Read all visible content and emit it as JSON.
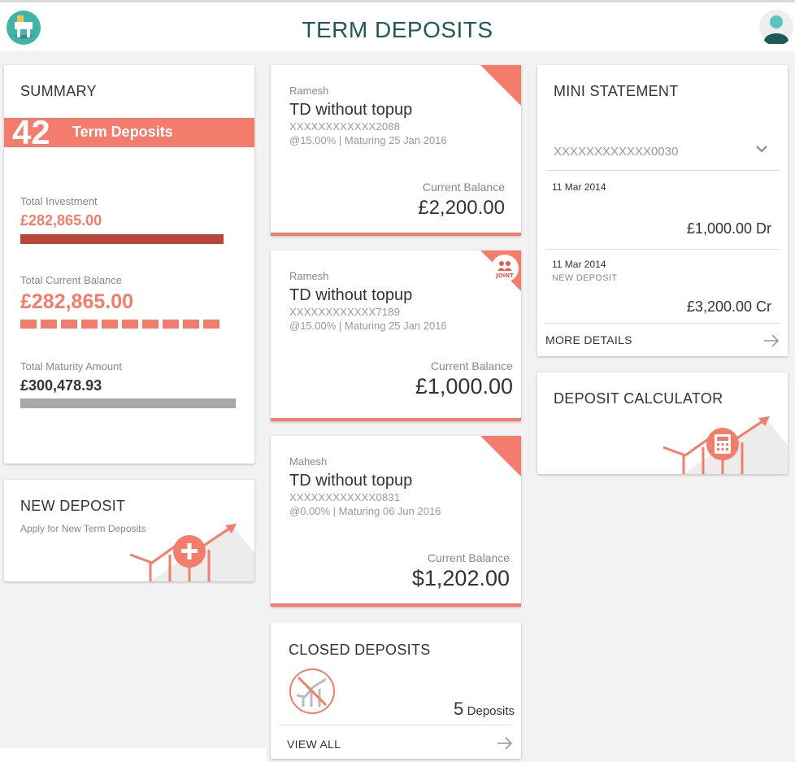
{
  "header": {
    "title": "TERM DEPOSITS"
  },
  "summary": {
    "title": "SUMMARY",
    "count": "42",
    "count_label": "Term Deposits",
    "total_investment_label": "Total Investment",
    "total_investment": "£282,865.00",
    "total_current_balance_label": "Total Current Balance",
    "total_current_balance": "£282,865.00",
    "total_maturity_label": "Total Maturity Amount",
    "total_maturity": "£300,478.93"
  },
  "new_deposit": {
    "title": "NEW DEPOSIT",
    "subtitle": "Apply for New Term Deposits"
  },
  "deposits": [
    {
      "owner": "Ramesh",
      "name": "TD without topup",
      "account": "XXXXXXXXXXXX2088",
      "rate": "@15.00% | Maturing 25 Jan 2016",
      "balance_label": "Current Balance",
      "balance": "£2,200.00",
      "badge": ""
    },
    {
      "owner": "Ramesh",
      "name": "TD without topup",
      "account": "XXXXXXXXXXXX7189",
      "rate": "@15.00% | Maturing 25 Jan 2016",
      "balance_label": "Current Balance",
      "balance": "£1,000.00",
      "badge": "JOINT"
    },
    {
      "owner": "Mahesh",
      "name": "TD without topup",
      "account": "XXXXXXXXXXXX0831",
      "rate": "@0.00% | Maturing 06 Jun 2016",
      "balance_label": "Current Balance",
      "balance": "$1,202.00",
      "badge": ""
    }
  ],
  "closed": {
    "title": "CLOSED DEPOSITS",
    "count": "5",
    "count_label": "Deposits",
    "view_all": "VIEW ALL"
  },
  "mini_statement": {
    "title": "MINI STATEMENT",
    "account": "XXXXXXXXXXXX0030",
    "transactions": [
      {
        "date": "11 Mar 2014",
        "description": "",
        "amount": "£1,000.00 Dr"
      },
      {
        "date": "11 Mar 2014",
        "description": "NEW DEPOSIT",
        "amount": "£3,200.00 Cr"
      }
    ],
    "more_details": "MORE DETAILS"
  },
  "calculator": {
    "title": "DEPOSIT CALCULATOR"
  },
  "colors": {
    "accent": "#f47c6c",
    "dark_accent": "#b8473a",
    "title_teal": "#1e5a5a",
    "grey_bar": "#a8a8a8"
  }
}
